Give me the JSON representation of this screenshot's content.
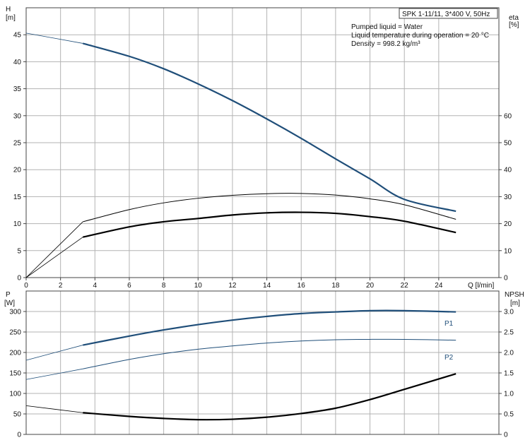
{
  "chart_data": [
    {
      "type": "line",
      "title_box": "SPK 1-11/11, 3*400 V, 50Hz",
      "notes": [
        "Pumped liquid = Water",
        "Liquid temperature during operation = 20 °C",
        "Density = 998.2 kg/m³"
      ],
      "xlabel": "Q [l/min]",
      "ylabel_left": [
        "H",
        "[m]"
      ],
      "ylabel_right": [
        "eta",
        "[%]"
      ],
      "xlim": [
        0,
        27.5
      ],
      "ylim_left": [
        0,
        50
      ],
      "ylim_right": [
        0,
        100
      ],
      "xticks": [
        0,
        2,
        4,
        6,
        8,
        10,
        12,
        14,
        16,
        18,
        20,
        22,
        24
      ],
      "yticks_left": [
        0,
        5,
        10,
        15,
        20,
        25,
        30,
        35,
        40,
        45
      ],
      "yticks_right": [
        0,
        10,
        20,
        30,
        40,
        50,
        60
      ],
      "grid": true,
      "series": [
        {
          "axis": "left",
          "color": "#1f4e79",
          "x": [
            0,
            3.3,
            6,
            8,
            10,
            12,
            14,
            16,
            18,
            20,
            22,
            25
          ],
          "y": [
            45.3,
            43.4,
            41,
            38.7,
            35.9,
            32.8,
            29.4,
            25.8,
            22.0,
            18.3,
            14.5,
            12.3
          ]
        },
        {
          "axis": "right",
          "color": "#000000",
          "x": [
            0,
            3.3,
            6,
            8,
            10,
            12,
            14,
            16,
            18,
            20,
            22,
            25
          ],
          "y": [
            0,
            20.7,
            25.2,
            27.7,
            29.4,
            30.5,
            31.1,
            31.2,
            30.6,
            29.2,
            27.0,
            21.6
          ]
        },
        {
          "axis": "right",
          "color": "#000000",
          "x": [
            0,
            3.3,
            6,
            8,
            10,
            12,
            14,
            16,
            18,
            20,
            22,
            25
          ],
          "y": [
            0,
            15.0,
            18.8,
            20.7,
            21.9,
            23.2,
            24.0,
            24.2,
            23.8,
            22.6,
            20.9,
            16.7
          ]
        }
      ]
    },
    {
      "type": "line",
      "xlim": [
        0,
        27.5
      ],
      "ylim_left": [
        0,
        350
      ],
      "ylim_right": [
        0,
        3.5
      ],
      "ylabel_left": [
        "P",
        "[W]"
      ],
      "ylabel_right": [
        "NPSH",
        "[m]"
      ],
      "yticks_left": [
        0,
        50,
        100,
        150,
        200,
        250,
        300
      ],
      "yticks_right": [
        "0",
        "0.5",
        "1.0",
        "1.5",
        "2.0",
        "2.5",
        "3.0"
      ],
      "grid": true,
      "series": [
        {
          "name": "P1",
          "axis": "left",
          "color": "#1f4e79",
          "x": [
            0,
            3.3,
            6,
            8,
            10,
            12,
            14,
            16,
            18,
            20,
            22,
            25
          ],
          "y": [
            181,
            218,
            240,
            255,
            268,
            279,
            288,
            295,
            299,
            302,
            302,
            299
          ]
        },
        {
          "name": "P2",
          "axis": "left",
          "color": "#1f4e79",
          "x": [
            0,
            3.3,
            6,
            8,
            10,
            12,
            14,
            16,
            18,
            20,
            22,
            25
          ],
          "y": [
            134,
            160,
            183,
            197,
            208,
            216,
            223,
            228,
            231,
            232,
            232,
            230
          ]
        },
        {
          "axis": "right",
          "color": "#000000",
          "x": [
            0,
            3.3,
            6,
            8,
            10,
            12,
            14,
            16,
            18,
            20,
            22,
            25
          ],
          "y": [
            0.7,
            0.53,
            0.44,
            0.39,
            0.36,
            0.37,
            0.42,
            0.51,
            0.64,
            0.85,
            1.1,
            1.48
          ]
        }
      ]
    }
  ]
}
